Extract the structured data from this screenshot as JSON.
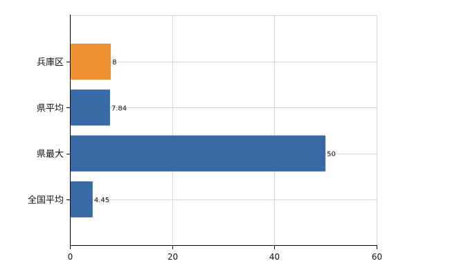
{
  "chart_data": {
    "type": "bar",
    "orientation": "horizontal",
    "categories": [
      "兵庫区",
      "県平均",
      "県最大",
      "全国平均"
    ],
    "values": [
      8,
      7.84,
      50,
      4.45
    ],
    "data_labels": [
      "8",
      "7.84",
      "50",
      "4.45"
    ],
    "colors": [
      "#ee9233",
      "#3a6aa6",
      "#3a6aa6",
      "#3a6aa6"
    ],
    "title": "",
    "xlabel": "",
    "ylabel": "",
    "xlim": [
      0,
      60
    ],
    "x_ticks": [
      0,
      20,
      40,
      60
    ],
    "x_tick_labels": [
      "0",
      "20",
      "40",
      "60"
    ],
    "grid": true,
    "legend": "none"
  }
}
